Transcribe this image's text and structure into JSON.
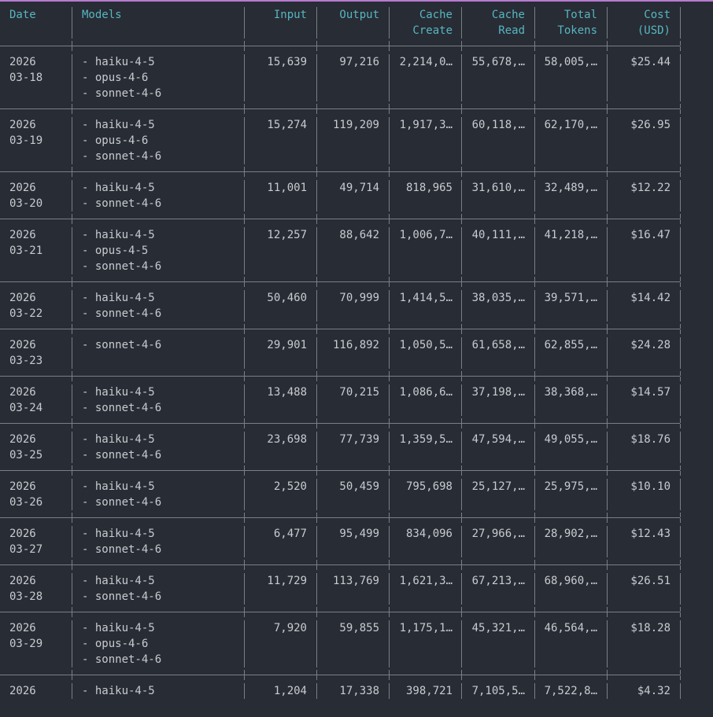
{
  "columns": [
    {
      "key": "date",
      "header": [
        "Date",
        ""
      ]
    },
    {
      "key": "models",
      "header": [
        "Models",
        ""
      ]
    },
    {
      "key": "input",
      "header": [
        "Input",
        ""
      ]
    },
    {
      "key": "output",
      "header": [
        "Output",
        ""
      ]
    },
    {
      "key": "cache_create",
      "header": [
        "Cache",
        "Create"
      ]
    },
    {
      "key": "cache_read",
      "header": [
        "Cache",
        "Read"
      ]
    },
    {
      "key": "total",
      "header": [
        "Total",
        "Tokens"
      ]
    },
    {
      "key": "cost",
      "header": [
        "Cost",
        "(USD)"
      ]
    }
  ],
  "rows": [
    {
      "date": [
        "2026",
        "03-18"
      ],
      "models": [
        "- haiku-4-5",
        "- opus-4-6",
        "- sonnet-4-6"
      ],
      "input": "15,639",
      "output": "97,216",
      "cache_create": "2,214,0…",
      "cache_read": "55,678,…",
      "total": "58,005,…",
      "cost": "$25.44"
    },
    {
      "date": [
        "2026",
        "03-19"
      ],
      "models": [
        "- haiku-4-5",
        "- opus-4-6",
        "- sonnet-4-6"
      ],
      "input": "15,274",
      "output": "119,209",
      "cache_create": "1,917,3…",
      "cache_read": "60,118,…",
      "total": "62,170,…",
      "cost": "$26.95"
    },
    {
      "date": [
        "2026",
        "03-20"
      ],
      "models": [
        "- haiku-4-5",
        "- sonnet-4-6"
      ],
      "input": "11,001",
      "output": "49,714",
      "cache_create": "818,965",
      "cache_read": "31,610,…",
      "total": "32,489,…",
      "cost": "$12.22"
    },
    {
      "date": [
        "2026",
        "03-21"
      ],
      "models": [
        "- haiku-4-5",
        "- opus-4-5",
        "- sonnet-4-6"
      ],
      "input": "12,257",
      "output": "88,642",
      "cache_create": "1,006,7…",
      "cache_read": "40,111,…",
      "total": "41,218,…",
      "cost": "$16.47"
    },
    {
      "date": [
        "2026",
        "03-22"
      ],
      "models": [
        "- haiku-4-5",
        "- sonnet-4-6"
      ],
      "input": "50,460",
      "output": "70,999",
      "cache_create": "1,414,5…",
      "cache_read": "38,035,…",
      "total": "39,571,…",
      "cost": "$14.42"
    },
    {
      "date": [
        "2026",
        "03-23"
      ],
      "models": [
        "- sonnet-4-6",
        ""
      ],
      "input": "29,901",
      "output": "116,892",
      "cache_create": "1,050,5…",
      "cache_read": "61,658,…",
      "total": "62,855,…",
      "cost": "$24.28"
    },
    {
      "date": [
        "2026",
        "03-24"
      ],
      "models": [
        "- haiku-4-5",
        "- sonnet-4-6"
      ],
      "input": "13,488",
      "output": "70,215",
      "cache_create": "1,086,6…",
      "cache_read": "37,198,…",
      "total": "38,368,…",
      "cost": "$14.57"
    },
    {
      "date": [
        "2026",
        "03-25"
      ],
      "models": [
        "- haiku-4-5",
        "- sonnet-4-6"
      ],
      "input": "23,698",
      "output": "77,739",
      "cache_create": "1,359,5…",
      "cache_read": "47,594,…",
      "total": "49,055,…",
      "cost": "$18.76"
    },
    {
      "date": [
        "2026",
        "03-26"
      ],
      "models": [
        "- haiku-4-5",
        "- sonnet-4-6"
      ],
      "input": "2,520",
      "output": "50,459",
      "cache_create": "795,698",
      "cache_read": "25,127,…",
      "total": "25,975,…",
      "cost": "$10.10"
    },
    {
      "date": [
        "2026",
        "03-27"
      ],
      "models": [
        "- haiku-4-5",
        "- sonnet-4-6"
      ],
      "input": "6,477",
      "output": "95,499",
      "cache_create": "834,096",
      "cache_read": "27,966,…",
      "total": "28,902,…",
      "cost": "$12.43"
    },
    {
      "date": [
        "2026",
        "03-28"
      ],
      "models": [
        "- haiku-4-5",
        "- sonnet-4-6"
      ],
      "input": "11,729",
      "output": "113,769",
      "cache_create": "1,621,3…",
      "cache_read": "67,213,…",
      "total": "68,960,…",
      "cost": "$26.51"
    },
    {
      "date": [
        "2026",
        "03-29"
      ],
      "models": [
        "- haiku-4-5",
        "- opus-4-6",
        "- sonnet-4-6"
      ],
      "input": "7,920",
      "output": "59,855",
      "cache_create": "1,175,1…",
      "cache_read": "45,321,…",
      "total": "46,564,…",
      "cost": "$18.28"
    },
    {
      "date": [
        "2026"
      ],
      "models": [
        "- haiku-4-5"
      ],
      "input": "1,204",
      "output": "17,338",
      "cache_create": "398,721",
      "cache_read": "7,105,5…",
      "total": "7,522,8…",
      "cost": "$4.32"
    }
  ]
}
